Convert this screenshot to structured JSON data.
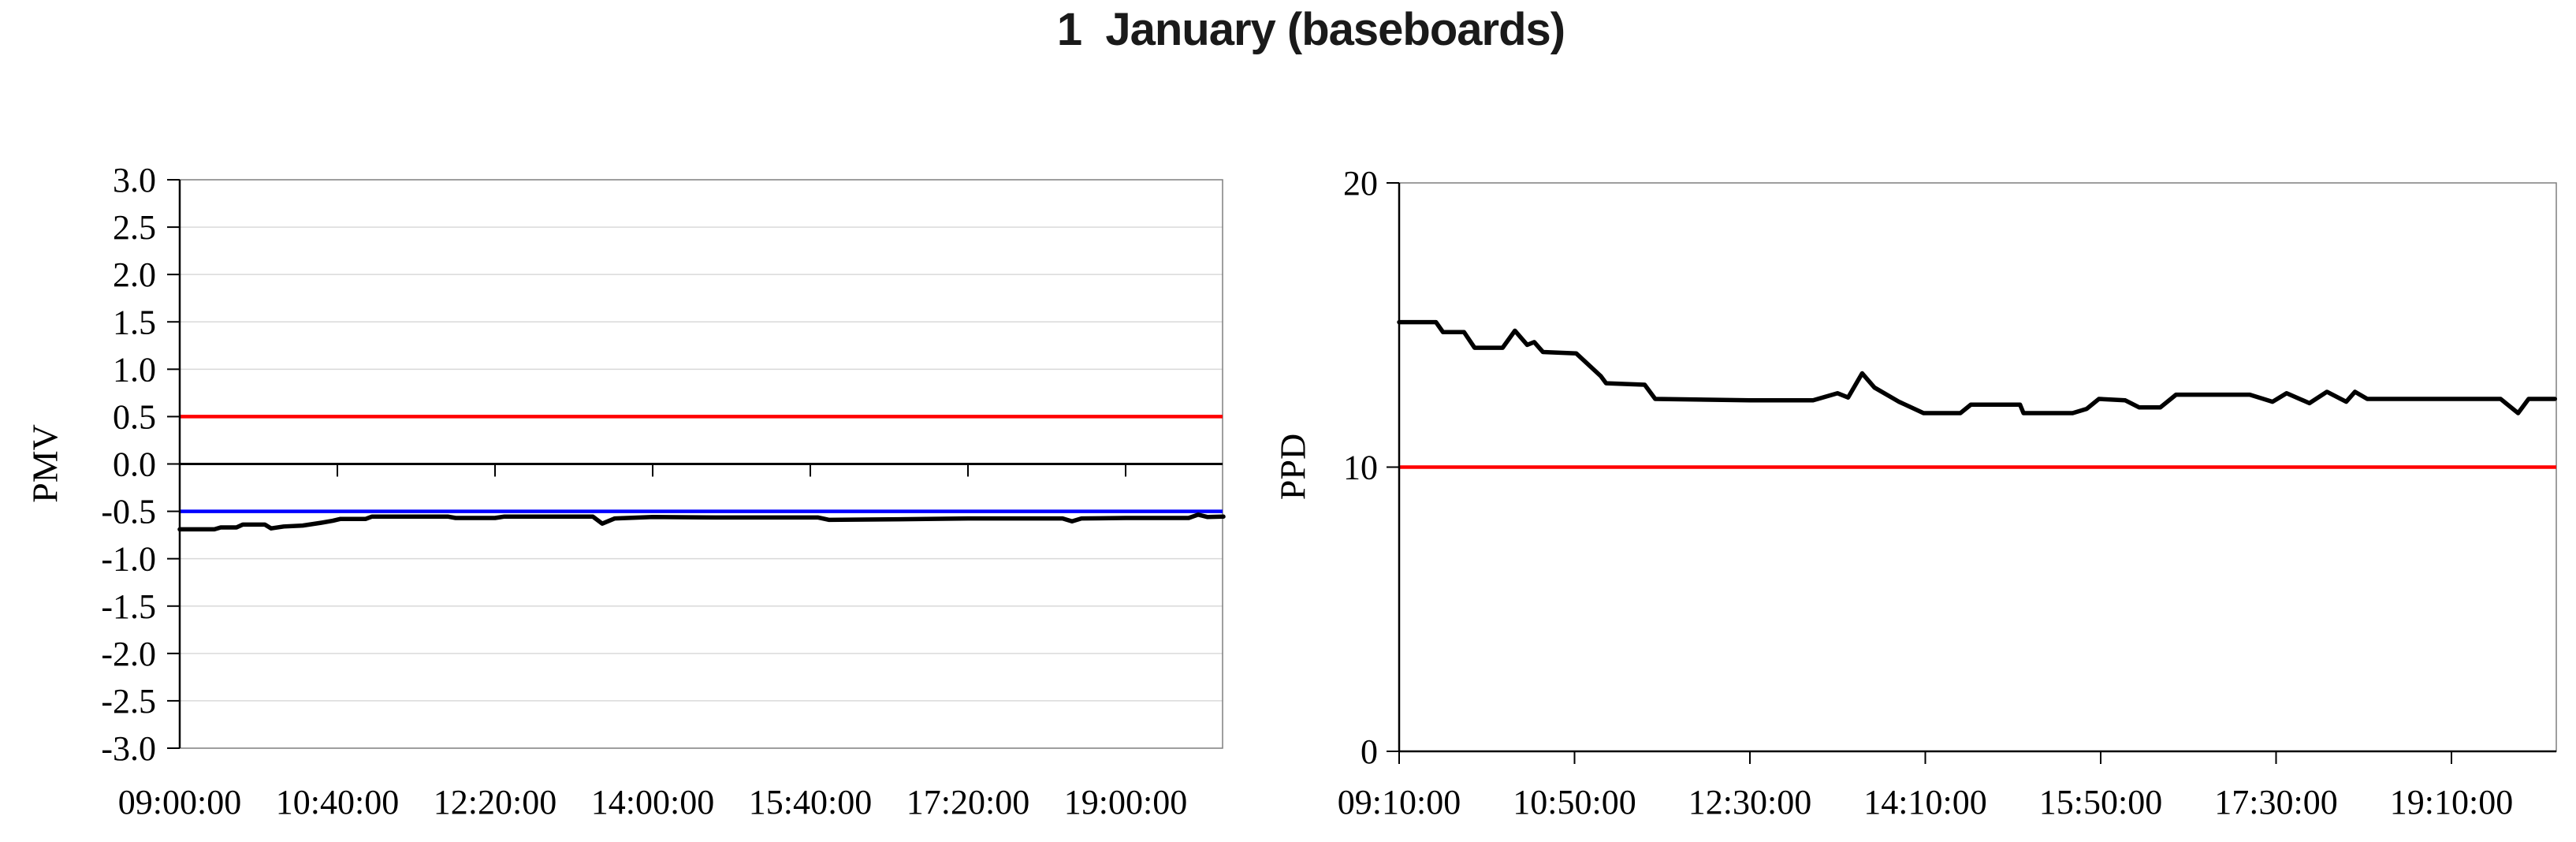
{
  "title": "1  January (baseboards)",
  "chart_data": [
    {
      "type": "line",
      "name": "pmv-chart",
      "y_axis_title": "PMV",
      "y_min": -3.0,
      "y_max": 3.0,
      "y_tick_step": 0.5,
      "y_tick_labels": [
        "3.0",
        "2.5",
        "2.0",
        "1.5",
        "1.0",
        "0.5",
        "0.0",
        "-0.5",
        "-1.0",
        "-1.5",
        "-2.0",
        "-2.5",
        "-3.0"
      ],
      "x_tick_labels": [
        "09:00:00",
        "10:40:00",
        "12:20:00",
        "14:00:00",
        "15:40:00",
        "17:20:00",
        "19:00:00"
      ],
      "x_tick_interval_min": 100,
      "x_start_label": "09:00:00",
      "x_range_minutes": [
        0,
        662
      ],
      "grid": true,
      "gridline_values": [
        2.5,
        2.0,
        1.5,
        1.0,
        0.5,
        -0.5,
        -1.0,
        -1.5,
        -2.0,
        -2.5
      ],
      "zero_line": true,
      "legend": "none",
      "ref_lines": [
        {
          "value": 0.5,
          "color": "#ff0000"
        },
        {
          "value": -0.5,
          "color": "#0000ff"
        }
      ],
      "series": [
        {
          "name": "PMV",
          "color": "#000000",
          "points_min_value": [
            [
              0,
              -0.69
            ],
            [
              22,
              -0.69
            ],
            [
              26,
              -0.67
            ],
            [
              36,
              -0.67
            ],
            [
              40,
              -0.64
            ],
            [
              54,
              -0.64
            ],
            [
              58,
              -0.68
            ],
            [
              66,
              -0.66
            ],
            [
              78,
              -0.65
            ],
            [
              90,
              -0.62
            ],
            [
              97,
              -0.6
            ],
            [
              102,
              -0.58
            ],
            [
              118,
              -0.58
            ],
            [
              122,
              -0.555
            ],
            [
              170,
              -0.555
            ],
            [
              175,
              -0.57
            ],
            [
              200,
              -0.57
            ],
            [
              206,
              -0.555
            ],
            [
              262,
              -0.555
            ],
            [
              268,
              -0.63
            ],
            [
              276,
              -0.575
            ],
            [
              300,
              -0.56
            ],
            [
              340,
              -0.565
            ],
            [
              405,
              -0.565
            ],
            [
              412,
              -0.59
            ],
            [
              450,
              -0.585
            ],
            [
              500,
              -0.575
            ],
            [
              560,
              -0.575
            ],
            [
              566,
              -0.605
            ],
            [
              572,
              -0.575
            ],
            [
              600,
              -0.57
            ],
            [
              640,
              -0.57
            ],
            [
              646,
              -0.535
            ],
            [
              652,
              -0.56
            ],
            [
              662,
              -0.555
            ]
          ]
        }
      ]
    },
    {
      "type": "line",
      "name": "ppd-chart",
      "y_axis_title": "PPD",
      "y_min": 0,
      "y_max": 20,
      "y_tick_step": 10,
      "y_tick_labels": [
        "20",
        "10",
        "0"
      ],
      "x_tick_labels": [
        "09:10:00",
        "10:50:00",
        "12:30:00",
        "14:10:00",
        "15:50:00",
        "17:30:00",
        "19:10:00"
      ],
      "x_tick_interval_min": 100,
      "x_start_label": "09:10:00",
      "x_range_minutes": [
        0,
        659
      ],
      "grid": false,
      "gridline_values": [],
      "zero_line": false,
      "legend": "none",
      "ref_lines": [
        {
          "value": 10,
          "color": "#ff0000"
        }
      ],
      "series": [
        {
          "name": "PPD",
          "color": "#000000",
          "points_min_value": [
            [
              0,
              15.1
            ],
            [
              21,
              15.1
            ],
            [
              25,
              14.75
            ],
            [
              37,
              14.75
            ],
            [
              43,
              14.2
            ],
            [
              59,
              14.2
            ],
            [
              66,
              14.8
            ],
            [
              73,
              14.3
            ],
            [
              77,
              14.4
            ],
            [
              82,
              14.05
            ],
            [
              101,
              14.0
            ],
            [
              115,
              13.2
            ],
            [
              118,
              12.95
            ],
            [
              140,
              12.9
            ],
            [
              146,
              12.4
            ],
            [
              200,
              12.35
            ],
            [
              236,
              12.35
            ],
            [
              250,
              12.6
            ],
            [
              256,
              12.45
            ],
            [
              264,
              13.3
            ],
            [
              271,
              12.8
            ],
            [
              285,
              12.3
            ],
            [
              299,
              11.9
            ],
            [
              320,
              11.9
            ],
            [
              326,
              12.2
            ],
            [
              354,
              12.2
            ],
            [
              356,
              11.9
            ],
            [
              384,
              11.9
            ],
            [
              392,
              12.05
            ],
            [
              399,
              12.4
            ],
            [
              414,
              12.35
            ],
            [
              422,
              12.1
            ],
            [
              434,
              12.1
            ],
            [
              443,
              12.55
            ],
            [
              485,
              12.55
            ],
            [
              498,
              12.3
            ],
            [
              506,
              12.6
            ],
            [
              519,
              12.25
            ],
            [
              529,
              12.65
            ],
            [
              540,
              12.3
            ],
            [
              545,
              12.65
            ],
            [
              552,
              12.4
            ],
            [
              628,
              12.4
            ],
            [
              638,
              11.9
            ],
            [
              644,
              12.4
            ],
            [
              659,
              12.4
            ]
          ]
        }
      ]
    }
  ],
  "colors": {
    "series_line": "#000000",
    "upper_ref_line": "#ff0000",
    "lower_ref_line": "#0000ff",
    "plot_border": "#7f7f7f",
    "gridline": "#d9d9d9",
    "axis": "#000000"
  }
}
